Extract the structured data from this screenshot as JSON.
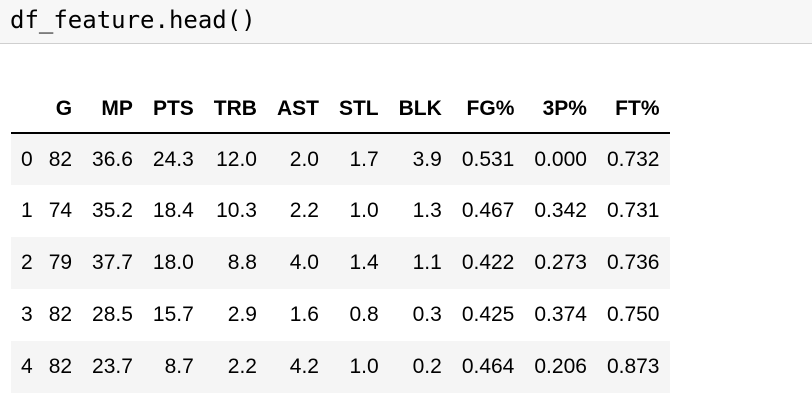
{
  "code_cell": {
    "source": "df_feature.head()"
  },
  "dataframe": {
    "columns": [
      "G",
      "MP",
      "PTS",
      "TRB",
      "AST",
      "STL",
      "BLK",
      "FG%",
      "3P%",
      "FT%"
    ],
    "rows": [
      {
        "index": "0",
        "values": [
          "82",
          "36.6",
          "24.3",
          "12.0",
          "2.0",
          "1.7",
          "3.9",
          "0.531",
          "0.000",
          "0.732"
        ]
      },
      {
        "index": "1",
        "values": [
          "74",
          "35.2",
          "18.4",
          "10.3",
          "2.2",
          "1.0",
          "1.3",
          "0.467",
          "0.342",
          "0.731"
        ]
      },
      {
        "index": "2",
        "values": [
          "79",
          "37.7",
          "18.0",
          "8.8",
          "4.0",
          "1.4",
          "1.1",
          "0.422",
          "0.273",
          "0.736"
        ]
      },
      {
        "index": "3",
        "values": [
          "82",
          "28.5",
          "15.7",
          "2.9",
          "1.6",
          "0.8",
          "0.3",
          "0.425",
          "0.374",
          "0.750"
        ]
      },
      {
        "index": "4",
        "values": [
          "82",
          "23.7",
          "8.7",
          "2.2",
          "4.2",
          "1.0",
          "0.2",
          "0.464",
          "0.206",
          "0.873"
        ]
      }
    ]
  }
}
